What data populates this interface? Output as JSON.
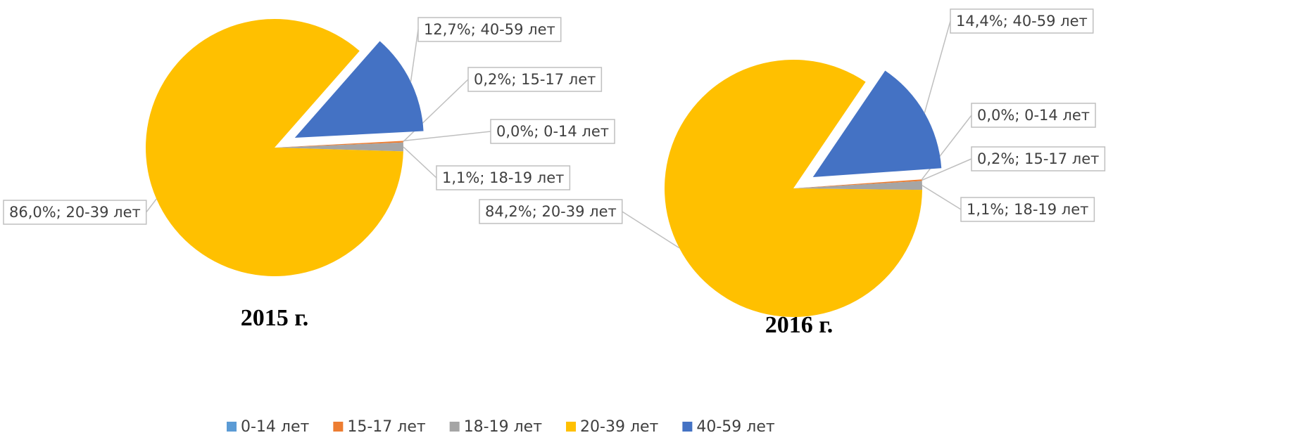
{
  "chart_data": [
    {
      "type": "pie",
      "title": "2015 г.",
      "categories": [
        "0-14 лет",
        "15-17 лет",
        "18-19 лет",
        "20-39 лет",
        "40-59 лет"
      ],
      "values": [
        0.0,
        0.2,
        1.1,
        86.0,
        12.7
      ],
      "value_labels": [
        "0,0%; 0-14 лет",
        "0,2%; 15-17 лет",
        "1,1%; 18-19 лет",
        "86,0%; 20-39 лет",
        "12,7%; 40-59 лет"
      ],
      "colors": [
        "#5b9bd5",
        "#ed7d31",
        "#a5a5a5",
        "#ffc000",
        "#4472c4"
      ]
    },
    {
      "type": "pie",
      "title": "2016 г.",
      "categories": [
        "0-14 лет",
        "15-17 лет",
        "18-19 лет",
        "20-39 лет",
        "40-59 лет"
      ],
      "values": [
        0.0,
        0.2,
        1.1,
        84.2,
        14.4
      ],
      "value_labels": [
        "0,0%; 0-14 лет",
        "0,2%; 15-17 лет",
        "1,1%; 18-19 лет",
        "84,2%; 20-39 лет",
        "14,4%; 40-59 лет"
      ],
      "colors": [
        "#5b9bd5",
        "#ed7d31",
        "#a5a5a5",
        "#ffc000",
        "#4472c4"
      ]
    }
  ]
}
